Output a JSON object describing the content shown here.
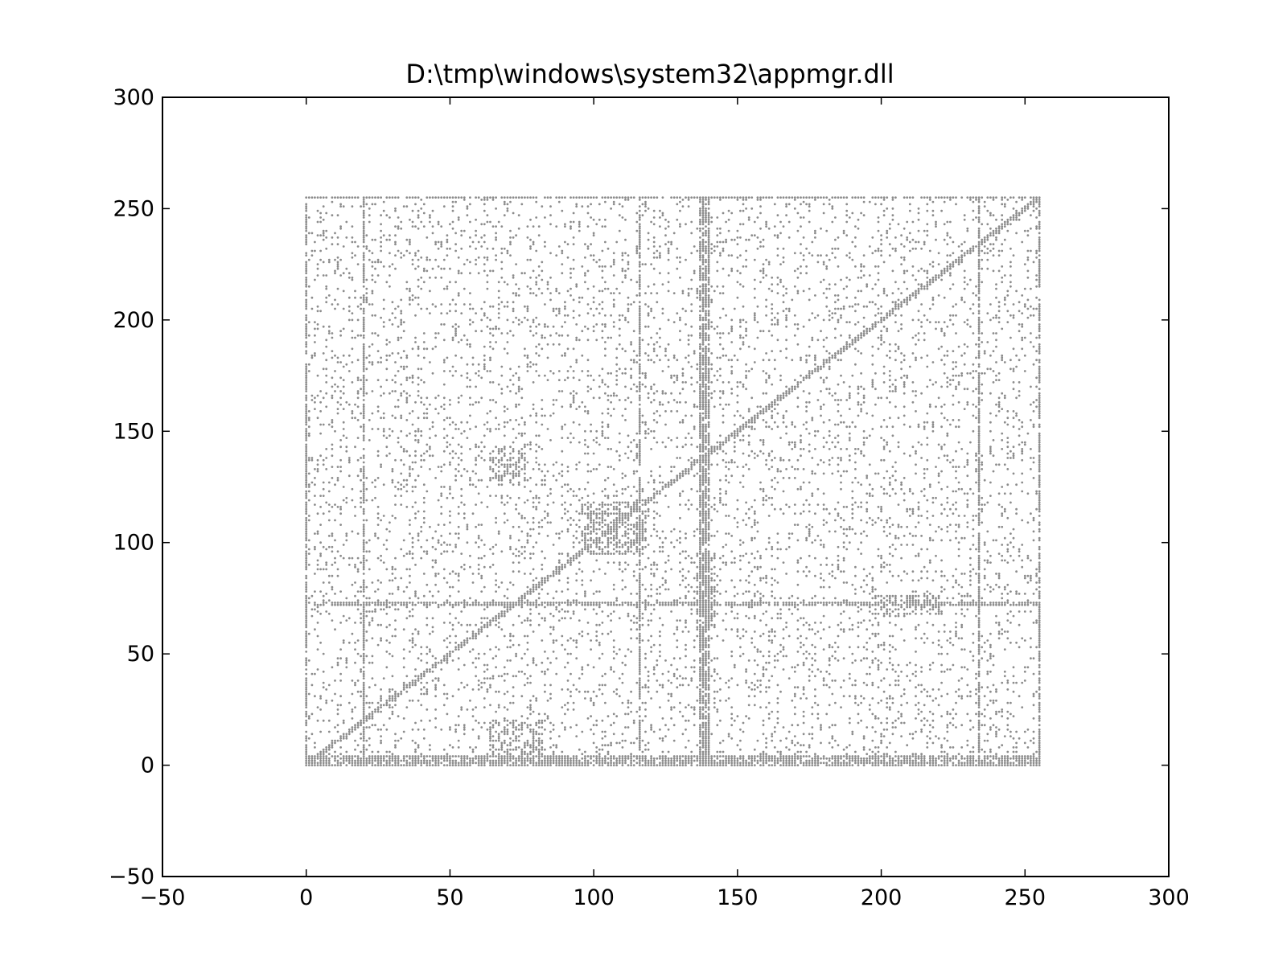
{
  "chart_data": {
    "type": "scatter",
    "title": "D:\\tmp\\windows\\system32\\appmgr.dll",
    "xlabel": "",
    "ylabel": "",
    "xlim": [
      -50,
      300
    ],
    "ylim": [
      -50,
      300
    ],
    "xticks": [
      -50,
      0,
      50,
      100,
      150,
      200,
      250,
      300
    ],
    "yticks": [
      -50,
      0,
      50,
      100,
      150,
      200,
      250,
      300
    ],
    "xtick_labels": [
      "−50",
      "0",
      "50",
      "100",
      "150",
      "200",
      "250",
      "300"
    ],
    "ytick_labels": [
      "−50",
      "0",
      "50",
      "100",
      "150",
      "200",
      "250",
      "300"
    ],
    "grid": false,
    "legend": "none",
    "marker_color": "#000000",
    "data_extent": {
      "x": [
        0,
        255
      ],
      "y": [
        0,
        255
      ]
    },
    "features": {
      "diagonal": {
        "from": [
          0,
          0
        ],
        "to": [
          255,
          255
        ]
      },
      "vertical_bands_x": [
        0,
        20,
        116,
        137,
        138,
        139,
        140,
        234,
        255
      ],
      "horizontal_bands_y": [
        0,
        1,
        2,
        3,
        4,
        72,
        73,
        255
      ],
      "clusters": [
        {
          "x": [
            64,
            76
          ],
          "y": [
            128,
            142
          ]
        },
        {
          "x": [
            96,
            118
          ],
          "y": [
            95,
            118
          ]
        },
        {
          "x": [
            136,
            142
          ],
          "y": [
            62,
            95
          ]
        },
        {
          "x": [
            64,
            82
          ],
          "y": [
            5,
            20
          ]
        },
        {
          "x": [
            196,
            220
          ],
          "y": [
            68,
            76
          ]
        }
      ],
      "background_density": 0.11
    }
  }
}
